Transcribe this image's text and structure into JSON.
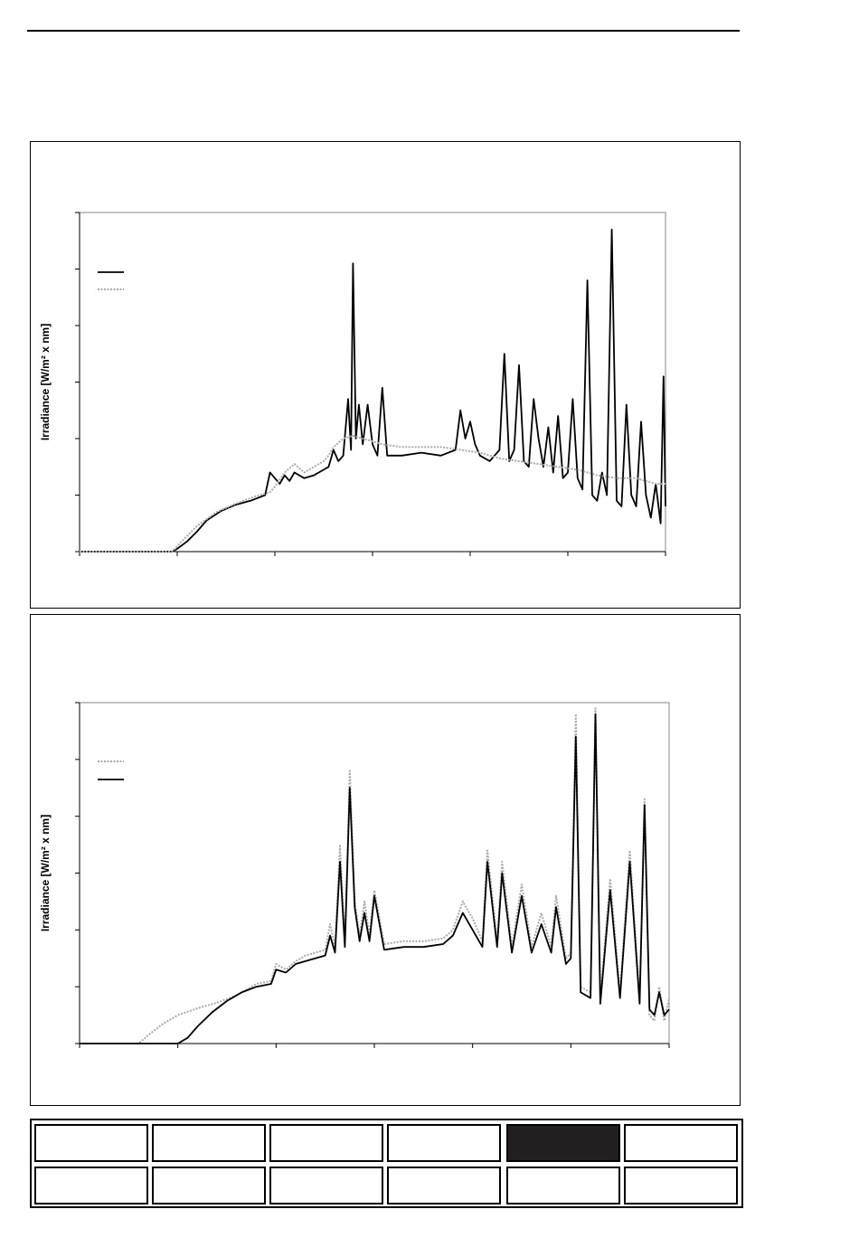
{
  "page": {
    "header_text": ""
  },
  "chart_data": [
    {
      "type": "line",
      "title": "",
      "xlabel": "",
      "ylabel": "Irradiance [W/m² x nm]",
      "xlim": [
        0,
        6
      ],
      "ylim": [
        0,
        6
      ],
      "legend_location": "top-left",
      "grid": false,
      "series": [
        {
          "name": "",
          "style": "solid",
          "color": "#000000",
          "points": [
            [
              0,
              0
            ],
            [
              0.5,
              0
            ],
            [
              0.95,
              0
            ],
            [
              1.0,
              0.05
            ],
            [
              1.1,
              0.18
            ],
            [
              1.2,
              0.35
            ],
            [
              1.3,
              0.55
            ],
            [
              1.45,
              0.72
            ],
            [
              1.6,
              0.83
            ],
            [
              1.75,
              0.9
            ],
            [
              1.9,
              1.0
            ],
            [
              1.95,
              1.4
            ],
            [
              2.0,
              1.3
            ],
            [
              2.05,
              1.2
            ],
            [
              2.1,
              1.35
            ],
            [
              2.15,
              1.25
            ],
            [
              2.2,
              1.4
            ],
            [
              2.3,
              1.3
            ],
            [
              2.4,
              1.35
            ],
            [
              2.5,
              1.45
            ],
            [
              2.55,
              1.5
            ],
            [
              2.6,
              1.8
            ],
            [
              2.65,
              1.6
            ],
            [
              2.7,
              1.7
            ],
            [
              2.75,
              2.7
            ],
            [
              2.78,
              1.8
            ],
            [
              2.8,
              5.1
            ],
            [
              2.83,
              2.0
            ],
            [
              2.86,
              2.6
            ],
            [
              2.9,
              1.9
            ],
            [
              2.95,
              2.6
            ],
            [
              3.0,
              1.9
            ],
            [
              3.05,
              1.7
            ],
            [
              3.1,
              2.9
            ],
            [
              3.15,
              1.7
            ],
            [
              3.3,
              1.7
            ],
            [
              3.5,
              1.75
            ],
            [
              3.7,
              1.7
            ],
            [
              3.85,
              1.8
            ],
            [
              3.9,
              2.5
            ],
            [
              3.95,
              2.0
            ],
            [
              4.0,
              2.3
            ],
            [
              4.05,
              1.9
            ],
            [
              4.1,
              1.7
            ],
            [
              4.2,
              1.6
            ],
            [
              4.25,
              1.7
            ],
            [
              4.3,
              1.8
            ],
            [
              4.35,
              3.5
            ],
            [
              4.4,
              1.6
            ],
            [
              4.45,
              1.8
            ],
            [
              4.5,
              3.3
            ],
            [
              4.55,
              1.6
            ],
            [
              4.6,
              1.5
            ],
            [
              4.65,
              2.7
            ],
            [
              4.7,
              2.0
            ],
            [
              4.75,
              1.5
            ],
            [
              4.8,
              2.2
            ],
            [
              4.85,
              1.4
            ],
            [
              4.9,
              2.4
            ],
            [
              4.95,
              1.3
            ],
            [
              5.0,
              1.4
            ],
            [
              5.05,
              2.7
            ],
            [
              5.1,
              1.3
            ],
            [
              5.15,
              1.1
            ],
            [
              5.2,
              4.8
            ],
            [
              5.25,
              1.0
            ],
            [
              5.3,
              0.9
            ],
            [
              5.35,
              1.4
            ],
            [
              5.4,
              1.0
            ],
            [
              5.45,
              5.7
            ],
            [
              5.5,
              0.9
            ],
            [
              5.55,
              0.8
            ],
            [
              5.6,
              2.6
            ],
            [
              5.65,
              1.0
            ],
            [
              5.7,
              0.8
            ],
            [
              5.75,
              2.3
            ],
            [
              5.8,
              1.0
            ],
            [
              5.85,
              0.6
            ],
            [
              5.9,
              1.2
            ],
            [
              5.95,
              0.5
            ],
            [
              5.98,
              3.1
            ],
            [
              6.0,
              0.8
            ]
          ]
        },
        {
          "name": "",
          "style": "dotted",
          "color": "#aaaaaa",
          "points": [
            [
              0,
              0
            ],
            [
              0.95,
              0
            ],
            [
              1.0,
              0.1
            ],
            [
              1.2,
              0.45
            ],
            [
              1.4,
              0.7
            ],
            [
              1.6,
              0.85
            ],
            [
              1.8,
              0.98
            ],
            [
              1.95,
              1.05
            ],
            [
              2.0,
              1.15
            ],
            [
              2.1,
              1.4
            ],
            [
              2.2,
              1.55
            ],
            [
              2.3,
              1.4
            ],
            [
              2.4,
              1.5
            ],
            [
              2.5,
              1.6
            ],
            [
              2.55,
              1.7
            ],
            [
              2.6,
              1.85
            ],
            [
              2.7,
              2.0
            ],
            [
              2.8,
              2.05
            ],
            [
              2.9,
              2.0
            ],
            [
              3.0,
              1.95
            ],
            [
              3.1,
              1.9
            ],
            [
              3.3,
              1.85
            ],
            [
              3.5,
              1.85
            ],
            [
              3.7,
              1.85
            ],
            [
              3.9,
              1.8
            ],
            [
              4.1,
              1.75
            ],
            [
              4.3,
              1.65
            ],
            [
              4.5,
              1.6
            ],
            [
              4.7,
              1.55
            ],
            [
              4.9,
              1.5
            ],
            [
              5.1,
              1.45
            ],
            [
              5.3,
              1.35
            ],
            [
              5.5,
              1.3
            ],
            [
              5.7,
              1.3
            ],
            [
              5.8,
              1.25
            ],
            [
              5.9,
              1.2
            ],
            [
              6.0,
              1.2
            ]
          ]
        }
      ]
    },
    {
      "type": "line",
      "title": "",
      "xlabel": "",
      "ylabel": "Irradiance [W/m² x nm]",
      "xlim": [
        0,
        6
      ],
      "ylim": [
        0,
        6
      ],
      "legend_location": "top-left",
      "grid": false,
      "series": [
        {
          "name": "",
          "style": "dotted",
          "color": "#aaaaaa",
          "points": [
            [
              0,
              0
            ],
            [
              0.6,
              0
            ],
            [
              0.7,
              0.15
            ],
            [
              0.85,
              0.35
            ],
            [
              1.0,
              0.5
            ],
            [
              1.2,
              0.62
            ],
            [
              1.4,
              0.72
            ],
            [
              1.6,
              0.85
            ],
            [
              1.8,
              1.05
            ],
            [
              1.95,
              1.1
            ],
            [
              2.0,
              1.4
            ],
            [
              2.1,
              1.3
            ],
            [
              2.2,
              1.45
            ],
            [
              2.3,
              1.55
            ],
            [
              2.4,
              1.6
            ],
            [
              2.5,
              1.65
            ],
            [
              2.55,
              2.1
            ],
            [
              2.6,
              1.7
            ],
            [
              2.65,
              3.5
            ],
            [
              2.7,
              1.8
            ],
            [
              2.75,
              4.8
            ],
            [
              2.8,
              2.5
            ],
            [
              2.85,
              1.9
            ],
            [
              2.9,
              2.5
            ],
            [
              2.95,
              1.9
            ],
            [
              3.0,
              2.7
            ],
            [
              3.1,
              1.75
            ],
            [
              3.3,
              1.8
            ],
            [
              3.5,
              1.8
            ],
            [
              3.7,
              1.85
            ],
            [
              3.8,
              2.0
            ],
            [
              3.9,
              2.5
            ],
            [
              4.0,
              2.2
            ],
            [
              4.1,
              1.8
            ],
            [
              4.15,
              3.4
            ],
            [
              4.25,
              1.8
            ],
            [
              4.3,
              3.2
            ],
            [
              4.4,
              1.7
            ],
            [
              4.5,
              2.8
            ],
            [
              4.6,
              1.7
            ],
            [
              4.7,
              2.3
            ],
            [
              4.8,
              1.7
            ],
            [
              4.85,
              2.6
            ],
            [
              4.95,
              1.5
            ],
            [
              5.0,
              1.6
            ],
            [
              5.05,
              5.8
            ],
            [
              5.1,
              1.0
            ],
            [
              5.2,
              0.9
            ],
            [
              5.25,
              5.9
            ],
            [
              5.3,
              0.8
            ],
            [
              5.4,
              2.9
            ],
            [
              5.5,
              0.9
            ],
            [
              5.6,
              3.4
            ],
            [
              5.7,
              0.8
            ],
            [
              5.75,
              4.3
            ],
            [
              5.8,
              0.5
            ],
            [
              5.85,
              0.4
            ],
            [
              5.9,
              1.0
            ],
            [
              5.95,
              0.4
            ],
            [
              6.0,
              0.8
            ]
          ]
        },
        {
          "name": "",
          "style": "solid",
          "color": "#000000",
          "points": [
            [
              0,
              0
            ],
            [
              1.0,
              0
            ],
            [
              1.1,
              0.1
            ],
            [
              1.2,
              0.3
            ],
            [
              1.35,
              0.55
            ],
            [
              1.5,
              0.75
            ],
            [
              1.65,
              0.9
            ],
            [
              1.8,
              1.0
            ],
            [
              1.95,
              1.05
            ],
            [
              2.0,
              1.3
            ],
            [
              2.1,
              1.25
            ],
            [
              2.2,
              1.4
            ],
            [
              2.3,
              1.45
            ],
            [
              2.4,
              1.5
            ],
            [
              2.5,
              1.55
            ],
            [
              2.55,
              1.9
            ],
            [
              2.6,
              1.6
            ],
            [
              2.65,
              3.2
            ],
            [
              2.7,
              1.7
            ],
            [
              2.75,
              4.5
            ],
            [
              2.8,
              2.4
            ],
            [
              2.85,
              1.8
            ],
            [
              2.9,
              2.3
            ],
            [
              2.95,
              1.8
            ],
            [
              3.0,
              2.6
            ],
            [
              3.1,
              1.65
            ],
            [
              3.3,
              1.7
            ],
            [
              3.5,
              1.7
            ],
            [
              3.7,
              1.75
            ],
            [
              3.8,
              1.9
            ],
            [
              3.9,
              2.3
            ],
            [
              4.0,
              2.0
            ],
            [
              4.1,
              1.7
            ],
            [
              4.15,
              3.2
            ],
            [
              4.25,
              1.7
            ],
            [
              4.3,
              3.0
            ],
            [
              4.4,
              1.6
            ],
            [
              4.5,
              2.6
            ],
            [
              4.6,
              1.6
            ],
            [
              4.7,
              2.1
            ],
            [
              4.8,
              1.6
            ],
            [
              4.85,
              2.4
            ],
            [
              4.95,
              1.4
            ],
            [
              5.0,
              1.5
            ],
            [
              5.05,
              5.4
            ],
            [
              5.1,
              0.9
            ],
            [
              5.2,
              0.8
            ],
            [
              5.25,
              5.8
            ],
            [
              5.3,
              0.7
            ],
            [
              5.4,
              2.7
            ],
            [
              5.5,
              0.8
            ],
            [
              5.6,
              3.2
            ],
            [
              5.7,
              0.7
            ],
            [
              5.75,
              4.2
            ],
            [
              5.8,
              0.6
            ],
            [
              5.85,
              0.5
            ],
            [
              5.9,
              0.9
            ],
            [
              5.95,
              0.5
            ],
            [
              6.0,
              0.6
            ]
          ]
        }
      ]
    }
  ],
  "nav": {
    "row1": [
      "",
      "",
      "",
      "",
      "",
      ""
    ],
    "row2": [
      "",
      "",
      "",
      "",
      "",
      ""
    ],
    "active_index": 4,
    "active_color": "#231f20"
  }
}
